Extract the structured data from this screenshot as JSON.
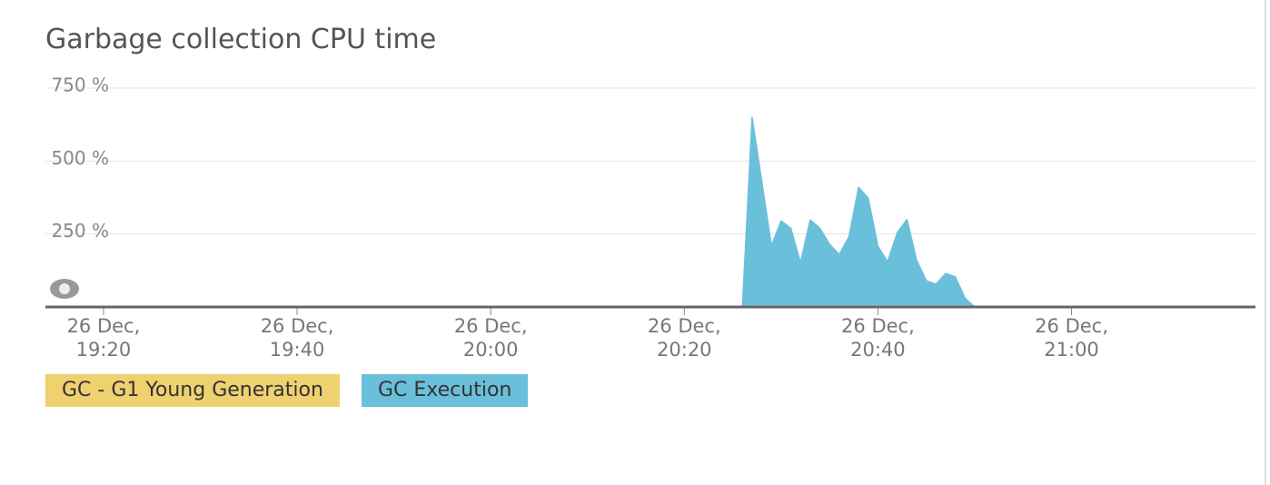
{
  "chart_data": {
    "type": "area",
    "title": "Garbage collection CPU time",
    "x": [
      "26 Dec, 20:26",
      "26 Dec, 20:27",
      "26 Dec, 20:28",
      "26 Dec, 20:29",
      "26 Dec, 20:30",
      "26 Dec, 20:31",
      "26 Dec, 20:32",
      "26 Dec, 20:33",
      "26 Dec, 20:34",
      "26 Dec, 20:35",
      "26 Dec, 20:36",
      "26 Dec, 20:37",
      "26 Dec, 20:38",
      "26 Dec, 20:39",
      "26 Dec, 20:40",
      "26 Dec, 20:41",
      "26 Dec, 20:42",
      "26 Dec, 20:43",
      "26 Dec, 20:44",
      "26 Dec, 20:45",
      "26 Dec, 20:46",
      "26 Dec, 20:47",
      "26 Dec, 20:48",
      "26 Dec, 20:49",
      "26 Dec, 20:50"
    ],
    "series": [
      {
        "name": "GC - G1 Young Generation",
        "color": "#efd170",
        "values": [
          0,
          3,
          3,
          3,
          3,
          3,
          3,
          3,
          3,
          3,
          3,
          3,
          3,
          3,
          3,
          3,
          3,
          3,
          3,
          3,
          3,
          3,
          3,
          3,
          0
        ]
      },
      {
        "name": "GC Execution",
        "color": "#6ac0db",
        "values": [
          0,
          650,
          430,
          210,
          295,
          270,
          152,
          298,
          270,
          215,
          180,
          240,
          410,
          373,
          208,
          155,
          255,
          300,
          160,
          90,
          78,
          115,
          103,
          30,
          0
        ]
      }
    ],
    "xlim": [
      "26 Dec, 19:14",
      "26 Dec, 21:19"
    ],
    "xticks": [
      "26 Dec, 19:20",
      "26 Dec, 19:40",
      "26 Dec, 20:00",
      "26 Dec, 20:20",
      "26 Dec, 20:40",
      "26 Dec, 21:00"
    ],
    "ylim": [
      0,
      750
    ],
    "yticks": [
      {
        "value": 250,
        "label": "250 %"
      },
      {
        "value": 500,
        "label": "500 %"
      },
      {
        "value": 750,
        "label": "750 %"
      }
    ],
    "grid": true
  }
}
